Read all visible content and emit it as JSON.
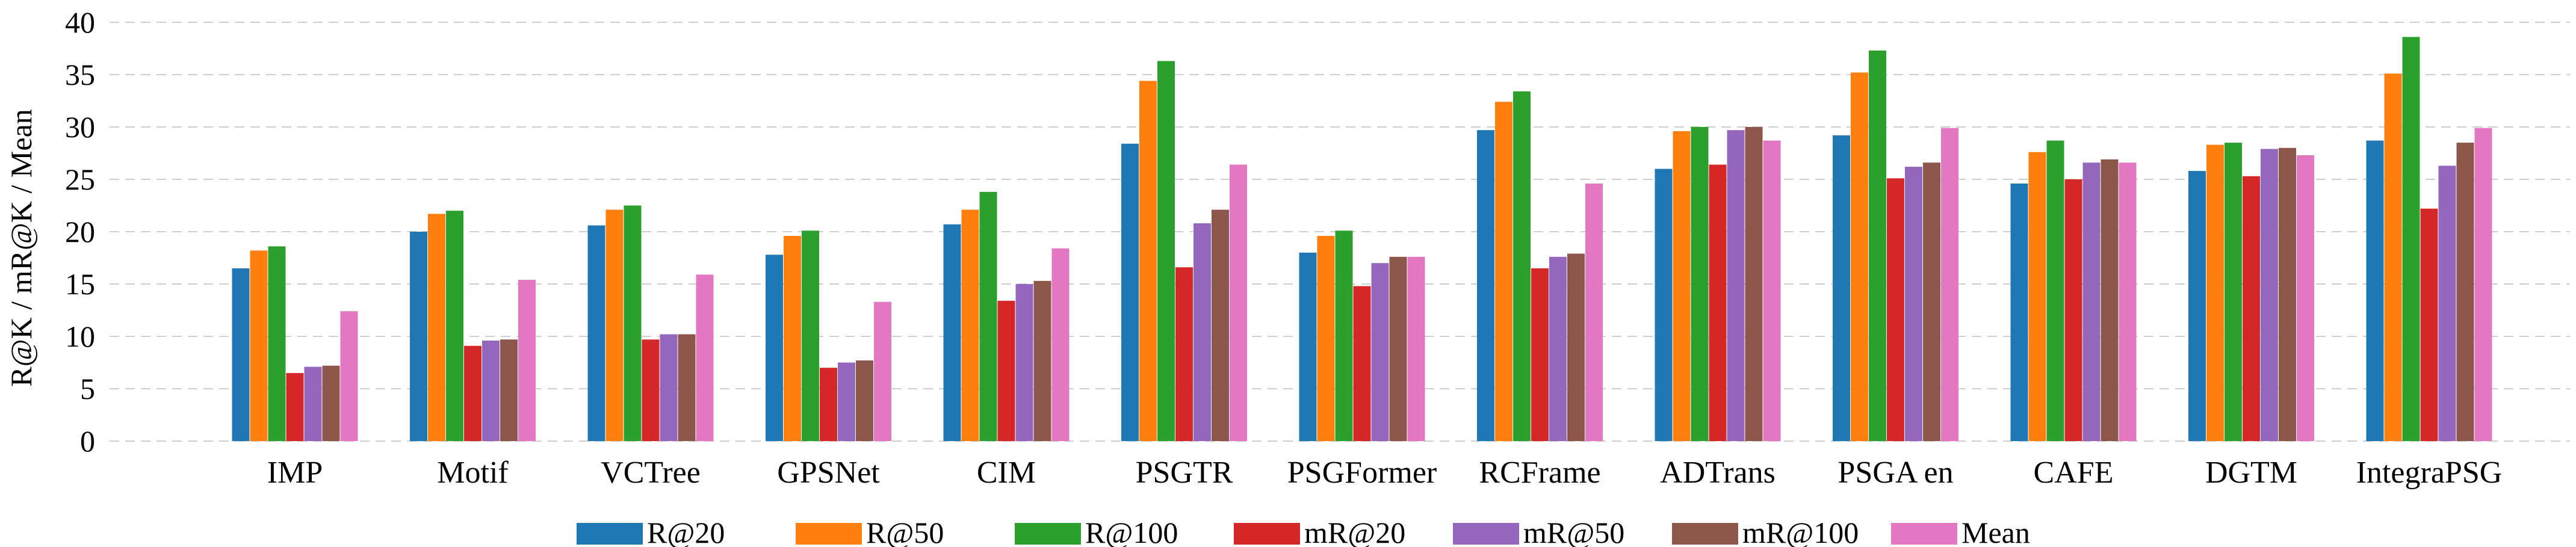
{
  "chart_data": {
    "type": "bar",
    "title": "",
    "xlabel": "",
    "ylabel": "R@K / mR@K / Mean",
    "ylim": [
      0,
      40
    ],
    "yticks": [
      0,
      5,
      10,
      15,
      20,
      25,
      30,
      35,
      40
    ],
    "grid": true,
    "legend_position": "bottom",
    "categories": [
      "IMP",
      "Motif",
      "VCTree",
      "GPSNet",
      "CIM",
      "PSGTR",
      "PSGFormer",
      "RCFrame",
      "ADTrans",
      "PSGA en",
      "CAFE",
      "DGTM",
      "IntegraPSG"
    ],
    "series": [
      {
        "name": "R@20",
        "color": "#1f77b4",
        "values": [
          16.5,
          20.0,
          20.6,
          17.8,
          20.7,
          28.4,
          18.0,
          29.7,
          26.0,
          29.2,
          24.6,
          25.8,
          28.7
        ]
      },
      {
        "name": "R@50",
        "color": "#ff7f0e",
        "values": [
          18.2,
          21.7,
          22.1,
          19.6,
          22.1,
          34.4,
          19.6,
          32.4,
          29.6,
          35.2,
          27.6,
          28.3,
          35.1
        ]
      },
      {
        "name": "R@100",
        "color": "#2ca02c",
        "values": [
          18.6,
          22.0,
          22.5,
          20.1,
          23.8,
          36.3,
          20.1,
          33.4,
          30.0,
          37.3,
          28.7,
          28.5,
          38.6
        ]
      },
      {
        "name": "mR@20",
        "color": "#d62728",
        "values": [
          6.5,
          9.1,
          9.7,
          7.0,
          13.4,
          16.6,
          14.8,
          16.5,
          26.4,
          25.1,
          25.0,
          25.3,
          22.2
        ]
      },
      {
        "name": "mR@50",
        "color": "#9467bd",
        "values": [
          7.1,
          9.6,
          10.2,
          7.5,
          15.0,
          20.8,
          17.0,
          17.6,
          29.7,
          26.2,
          26.6,
          27.9,
          26.3
        ]
      },
      {
        "name": "mR@100",
        "color": "#8c564b",
        "values": [
          7.2,
          9.7,
          10.2,
          7.7,
          15.3,
          22.1,
          17.6,
          17.9,
          30.0,
          26.6,
          26.9,
          28.0,
          28.5
        ]
      },
      {
        "name": "Mean",
        "color": "#e377c2",
        "values": [
          12.4,
          15.4,
          15.9,
          13.3,
          18.4,
          26.4,
          17.6,
          24.6,
          28.7,
          29.9,
          26.6,
          27.3,
          29.9
        ]
      }
    ]
  }
}
